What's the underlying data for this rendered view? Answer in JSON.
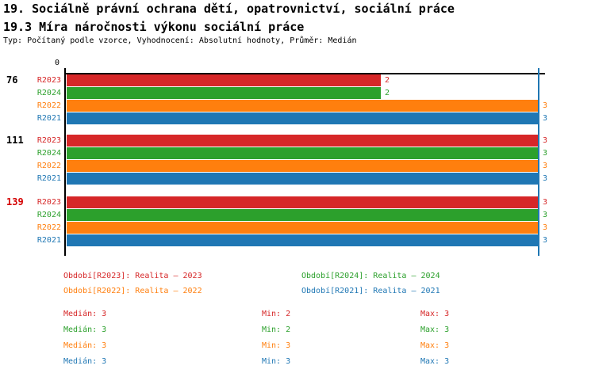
{
  "header": {
    "title_line1": "19. Sociálně právní ochrana dětí, opatrovnictví, sociální práce",
    "title_line2": "19.3 Míra náročnosti výkonu sociální práce",
    "subtitle": "Typ: Počítaný podle vzorce, Vyhodnocení: Absolutní hodnoty, Průměr: Medián"
  },
  "colors": {
    "series": {
      "R2023": "#d62728",
      "R2024": "#2ca02c",
      "R2022": "#ff7f0e",
      "R2021": "#1f77b4"
    },
    "axis": "#000000",
    "median_line": "#1f77b4",
    "group_label": "#000000",
    "group_label_highlight": "#d40000"
  },
  "chart_data": {
    "type": "bar",
    "orientation": "horizontal",
    "value_axis": {
      "min": 0,
      "max": 3,
      "tick_label": "0",
      "position": "top"
    },
    "series_order": [
      "R2023",
      "R2024",
      "R2022",
      "R2021"
    ],
    "groups": [
      {
        "label": "76",
        "highlighted": false,
        "bars": [
          {
            "series": "R2023",
            "value": 2
          },
          {
            "series": "R2024",
            "value": 2
          },
          {
            "series": "R2022",
            "value": 3
          },
          {
            "series": "R2021",
            "value": 3
          }
        ]
      },
      {
        "label": "111",
        "highlighted": false,
        "bars": [
          {
            "series": "R2023",
            "value": 3
          },
          {
            "series": "R2024",
            "value": 3
          },
          {
            "series": "R2022",
            "value": 3
          },
          {
            "series": "R2021",
            "value": 3
          }
        ]
      },
      {
        "label": "139",
        "highlighted": true,
        "bars": [
          {
            "series": "R2023",
            "value": 3
          },
          {
            "series": "R2024",
            "value": 3
          },
          {
            "series": "R2022",
            "value": 3
          },
          {
            "series": "R2021",
            "value": 3
          }
        ]
      }
    ],
    "median_reference_line": {
      "value": 3
    }
  },
  "legend": {
    "items": [
      {
        "series": "R2023",
        "label": "Období[R2023]: Realita – 2023"
      },
      {
        "series": "R2024",
        "label": "Období[R2024]: Realita – 2024"
      },
      {
        "series": "R2022",
        "label": "Období[R2022]: Realita – 2022"
      },
      {
        "series": "R2021",
        "label": "Období[R2021]: Realita – 2021"
      }
    ]
  },
  "stats": {
    "labels": {
      "median": "Medián",
      "min": "Min",
      "max": "Max"
    },
    "rows": [
      {
        "series": "R2023",
        "median": 3,
        "min": 2,
        "max": 3
      },
      {
        "series": "R2024",
        "median": 3,
        "min": 2,
        "max": 3
      },
      {
        "series": "R2022",
        "median": 3,
        "min": 3,
        "max": 3
      },
      {
        "series": "R2021",
        "median": 3,
        "min": 3,
        "max": 3
      }
    ]
  }
}
